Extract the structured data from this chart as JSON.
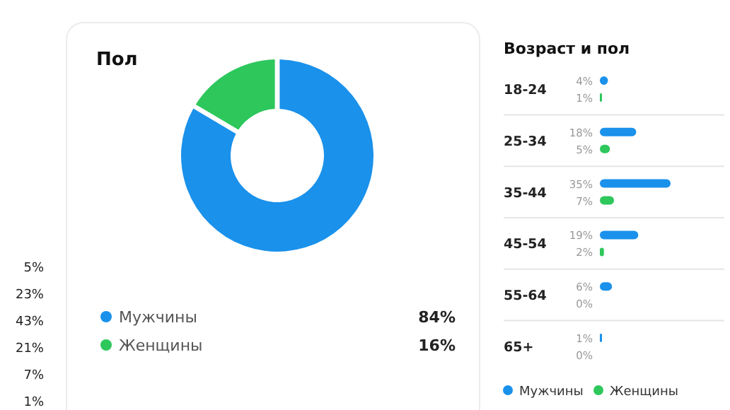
{
  "chart_data": [
    {
      "type": "other",
      "annotations": [
        "5%",
        "23%",
        "43%",
        "21%",
        "7%",
        "1%"
      ]
    },
    {
      "type": "donut",
      "title": "Пол",
      "categories": [
        "Мужчины",
        "Женщины"
      ],
      "values": [
        84,
        16
      ],
      "colors": [
        "#1a91eb",
        "#2dc75c"
      ],
      "value_labels": [
        "84%",
        "16%"
      ],
      "legend": "bottom"
    },
    {
      "type": "bar",
      "orientation": "horizontal",
      "title": "Возраст и пол",
      "categories": [
        "18-24",
        "25-34",
        "35-44",
        "45-54",
        "55-64",
        "65+"
      ],
      "legend": "bottom",
      "series": [
        {
          "name": "Мужчины",
          "color": "#1a91eb",
          "values": [
            4,
            18,
            35,
            19,
            6,
            1
          ],
          "value_labels": [
            "4%",
            "18%",
            "35%",
            "19%",
            "6%",
            "1%"
          ]
        },
        {
          "name": "Женщины",
          "color": "#2dc75c",
          "values": [
            1,
            5,
            7,
            2,
            0,
            0
          ],
          "value_labels": [
            "1%",
            "5%",
            "7%",
            "2%",
            "0%",
            "0%"
          ]
        }
      ]
    }
  ]
}
